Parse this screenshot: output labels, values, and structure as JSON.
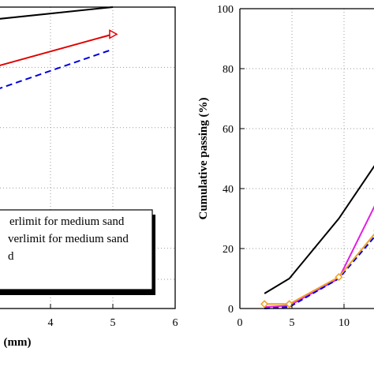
{
  "chart_data": [
    {
      "type": "line",
      "xlabel": "(mm)",
      "ylabel": "",
      "xlim": [
        0,
        6
      ],
      "ylim": [
        0,
        100
      ],
      "xticks": [
        "4",
        "5",
        "6"
      ],
      "grid": true,
      "legend_placement": "bottom-left",
      "legend_entries": [
        "erlimit for medium sand",
        "verlimit for medium sand",
        "d"
      ],
      "series": [
        {
          "color": "#000000",
          "dash": "solid",
          "marker": "none",
          "x": [
            2.2,
            5.0
          ],
          "y": [
            94,
            100
          ]
        },
        {
          "color": "#e00000",
          "dash": "solid",
          "marker": "triangle-right",
          "x": [
            2.2,
            5.0
          ],
          "y": [
            75,
            91
          ]
        },
        {
          "color": "#0000e0",
          "dash": "dashed",
          "marker": "none",
          "x": [
            2.2,
            5.0
          ],
          "y": [
            66,
            86
          ]
        }
      ]
    },
    {
      "type": "line",
      "xlabel": "",
      "ylabel": "Cumulative passing (%)",
      "xlim": [
        0,
        15
      ],
      "ylim": [
        0,
        100
      ],
      "xticks": [
        "0",
        "5",
        "10"
      ],
      "yticks": [
        "0",
        "20",
        "40",
        "60",
        "80",
        "100"
      ],
      "grid": true,
      "series": [
        {
          "color": "#000000",
          "dash": "solid",
          "marker": "none",
          "x": [
            2.36,
            4.75,
            9.5,
            13.2
          ],
          "y": [
            5,
            10,
            30,
            49
          ]
        },
        {
          "color": "#e020e0",
          "dash": "solid",
          "marker": "none",
          "x": [
            2.36,
            4.75,
            9.5,
            13.2
          ],
          "y": [
            0.5,
            1,
            10,
            36
          ]
        },
        {
          "color": "#0000e0",
          "dash": "dashed",
          "marker": "none",
          "x": [
            2.36,
            4.75,
            9.5,
            13.2
          ],
          "y": [
            0,
            0.5,
            10,
            25
          ]
        },
        {
          "color": "#f0a020",
          "dash": "solid",
          "marker": "diamond",
          "x": [
            2.36,
            4.75,
            9.5,
            13.2
          ],
          "y": [
            1.5,
            1.5,
            10.5,
            26
          ]
        }
      ]
    }
  ]
}
